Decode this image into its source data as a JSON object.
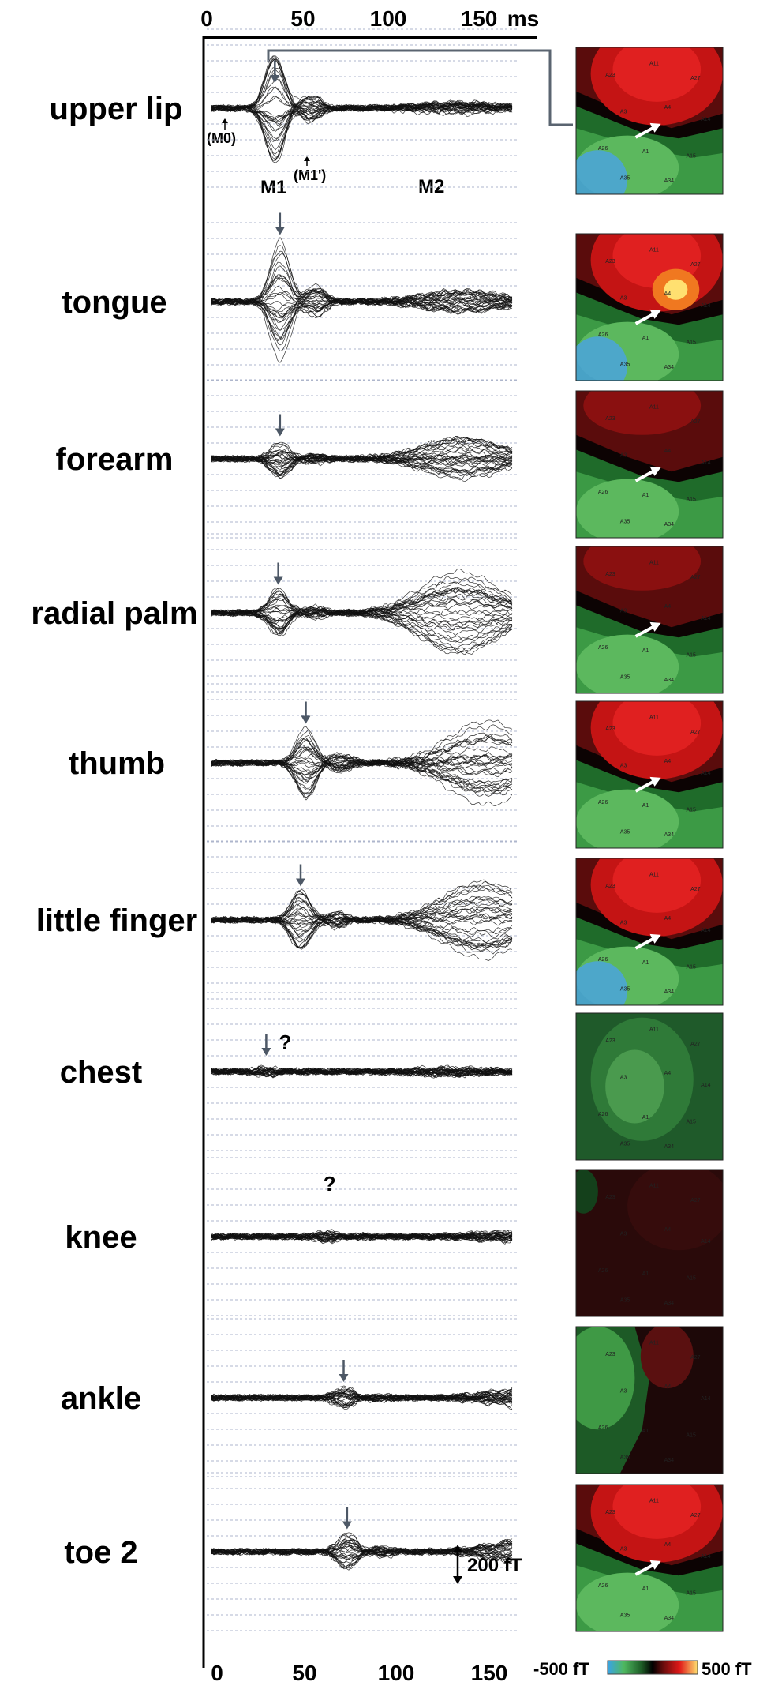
{
  "chart_data": {
    "type": "line",
    "x_unit": "ms",
    "xlim": [
      0,
      160
    ],
    "top_ticks": [
      "0",
      "50",
      "100",
      "150"
    ],
    "top_unit": "ms",
    "bottom_ticks": [
      "0",
      "50",
      "100",
      "150"
    ],
    "scale_bar_label": "200 fT",
    "colorbar": {
      "min_label": "-500 fT",
      "max_label": "500 fT"
    },
    "annotations": {
      "m0": "(M0)",
      "m1": "M1",
      "m1p": "(M1')",
      "m2": "M2",
      "question": "?"
    },
    "rows": [
      {
        "label": "upper lip",
        "m1_ms": 35,
        "amp_m1": 1.0,
        "amp_m2": 0.12,
        "uncertain": false,
        "map": "lip"
      },
      {
        "label": "tongue",
        "m1_ms": 38,
        "amp_m1": 1.15,
        "amp_m2": 0.25,
        "uncertain": false,
        "map": "tongue"
      },
      {
        "label": "forearm",
        "m1_ms": 38,
        "amp_m1": 0.35,
        "amp_m2": 0.45,
        "uncertain": false,
        "map": "forearm"
      },
      {
        "label": "radial palm",
        "m1_ms": 37,
        "amp_m1": 0.45,
        "amp_m2": 0.9,
        "uncertain": false,
        "map": "palm"
      },
      {
        "label": "thumb",
        "m1_ms": 53,
        "amp_m1": 0.65,
        "amp_m2": 0.95,
        "uncertain": false,
        "map": "thumb"
      },
      {
        "label": "little finger",
        "m1_ms": 50,
        "amp_m1": 0.55,
        "amp_m2": 0.85,
        "uncertain": false,
        "map": "finger"
      },
      {
        "label": "chest",
        "m1_ms": 30,
        "amp_m1": 0.08,
        "amp_m2": 0.08,
        "uncertain": true,
        "map": "chest"
      },
      {
        "label": "knee",
        "m1_ms": 65,
        "amp_m1": 0.1,
        "amp_m2": 0.1,
        "uncertain": true,
        "map": "knee"
      },
      {
        "label": "ankle",
        "m1_ms": 75,
        "amp_m1": 0.2,
        "amp_m2": 0.2,
        "uncertain": false,
        "map": "ankle"
      },
      {
        "label": "toe 2",
        "m1_ms": 77,
        "amp_m1": 0.35,
        "amp_m2": 0.25,
        "uncertain": false,
        "map": "toe"
      }
    ]
  }
}
